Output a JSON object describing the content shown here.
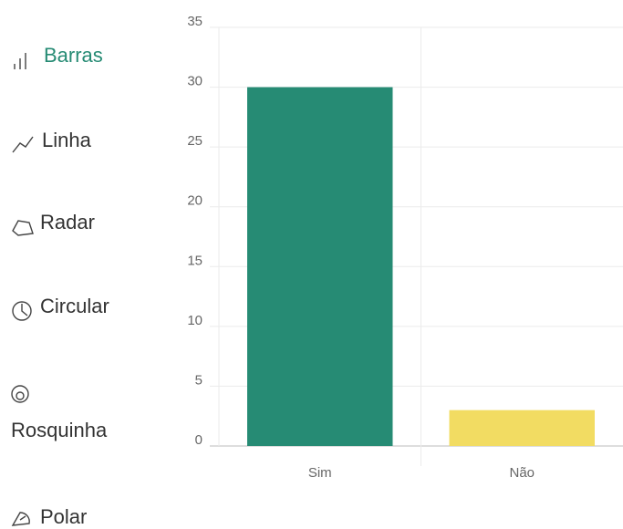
{
  "menu": {
    "items": [
      {
        "label": "Barras",
        "selected": true
      },
      {
        "label": "Linha",
        "selected": false
      },
      {
        "label": "Radar",
        "selected": false
      },
      {
        "label": "Circular",
        "selected": false
      },
      {
        "label": "Rosquinha",
        "selected": false
      },
      {
        "label": "Polar",
        "selected": false
      }
    ]
  },
  "chart_data": {
    "type": "bar",
    "categories": [
      "Sim",
      "Não"
    ],
    "values": [
      30,
      3
    ],
    "colors": [
      "#268b74",
      "#f2dc62"
    ],
    "ylim": [
      0,
      35
    ],
    "yticks": [
      0,
      5,
      10,
      15,
      20,
      25,
      30,
      35
    ],
    "grid": true
  }
}
